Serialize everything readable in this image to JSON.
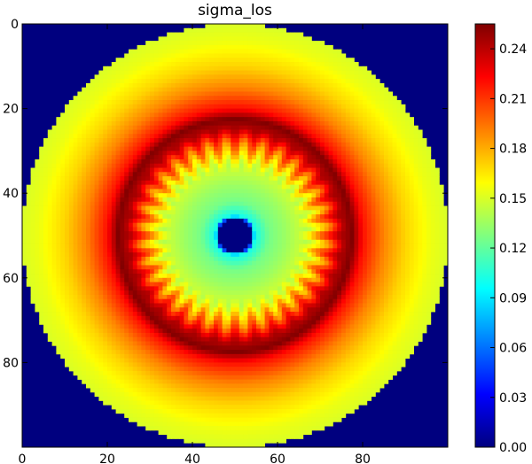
{
  "chart_data": {
    "type": "heatmap",
    "title": "sigma_los",
    "xlabel": "",
    "ylabel": "",
    "grid": false,
    "xlim": [
      0,
      100
    ],
    "ylim": [
      100,
      0
    ],
    "x_ticks": [
      0,
      20,
      40,
      60,
      80
    ],
    "x_tick_labels": [
      "0",
      "20",
      "40",
      "60",
      "80"
    ],
    "y_ticks": [
      0,
      20,
      40,
      60,
      80
    ],
    "y_tick_labels": [
      "0",
      "20",
      "40",
      "60",
      "80"
    ],
    "colormap": "jet",
    "value_range": [
      0.0,
      0.255
    ],
    "colorbar": {
      "ticks": [
        0.0,
        0.03,
        0.06,
        0.09,
        0.12,
        0.15,
        0.18,
        0.21,
        0.24
      ],
      "tick_labels": [
        "0.00",
        "0.03",
        "0.06",
        "0.09",
        "0.12",
        "0.15",
        "0.18",
        "0.21",
        "0.24"
      ]
    },
    "grid_size": 100,
    "center": [
      49.5,
      49.5
    ],
    "radial_profile": [
      {
        "r": 0,
        "value": 0.0
      },
      {
        "r": 4,
        "value": 0.0
      },
      {
        "r": 4.6,
        "value": 0.1
      },
      {
        "r": 6,
        "value": 0.11
      },
      {
        "r": 8,
        "value": 0.125
      },
      {
        "r": 12,
        "value": 0.135
      },
      {
        "r": 17,
        "value": 0.15
      },
      {
        "r": 22,
        "value": 0.2
      },
      {
        "r": 25,
        "value": 0.24
      },
      {
        "r": 27.5,
        "value": 0.255
      },
      {
        "r": 30,
        "value": 0.22
      },
      {
        "r": 35,
        "value": 0.19
      },
      {
        "r": 40,
        "value": 0.17
      },
      {
        "r": 46,
        "value": 0.155
      },
      {
        "r": 50,
        "value": 0.15
      },
      {
        "r": 51,
        "value": 0.0
      }
    ],
    "angular_modulation": {
      "lobes": 32,
      "amplitude": 0.02
    },
    "background_value": 0.0
  }
}
